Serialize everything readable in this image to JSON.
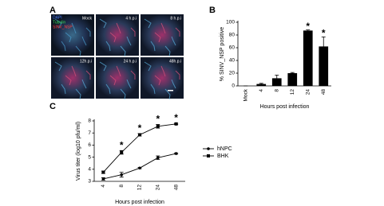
{
  "image_panel": {
    "panel": "A",
    "stains": [
      "DAPI",
      "Tubulin",
      "SINV_NSP"
    ],
    "tiles": [
      "Mock",
      "4 h.p.i",
      "8 h.p.i",
      "12h.p.i",
      "24 h.p.i",
      "48h.p.i"
    ]
  },
  "chart_data": [
    {
      "type": "bar",
      "panel": "B",
      "y_label": "% SINV_NSP positive",
      "x_label": "Hours post infection",
      "categories": [
        "Mock",
        "4",
        "8",
        "12",
        "24",
        "48"
      ],
      "values": [
        0,
        3,
        12,
        20,
        87,
        62
      ],
      "errors": [
        0,
        1,
        5,
        1,
        1,
        15
      ],
      "color": "#000000",
      "ylim": [
        0,
        100
      ],
      "yticks": [
        0,
        20,
        40,
        60,
        80,
        100
      ],
      "annotations": [
        {
          "category": 4,
          "text": "*"
        },
        {
          "category": 5,
          "text": "*"
        }
      ]
    },
    {
      "type": "line",
      "panel": "C",
      "y_label": "Virus titer (log10 pfu/ml)",
      "x_label": "Hours post infection",
      "categories": [
        "4",
        "8",
        "12",
        "24",
        "48"
      ],
      "series": [
        {
          "name": "hNPC",
          "color": "#000000",
          "marker": "circle",
          "values": [
            3.2,
            3.55,
            4.1,
            4.95,
            5.3
          ],
          "errors": [
            0.1,
            0.2,
            0.05,
            0.15,
            0.05
          ]
        },
        {
          "name": "BHK",
          "color": "#000000",
          "marker": "square",
          "values": [
            3.75,
            5.4,
            6.85,
            7.55,
            7.75
          ],
          "errors": [
            0.1,
            0.15,
            0.1,
            0.15,
            0.05
          ]
        }
      ],
      "ylim": [
        3,
        8
      ],
      "yticks": [
        3,
        4,
        5,
        6,
        7,
        8
      ],
      "legend": "right",
      "annotations": [
        {
          "category": 1,
          "text": "*"
        },
        {
          "category": 2,
          "text": "*"
        },
        {
          "category": 3,
          "text": "*"
        },
        {
          "category": 4,
          "text": "*"
        }
      ]
    }
  ]
}
